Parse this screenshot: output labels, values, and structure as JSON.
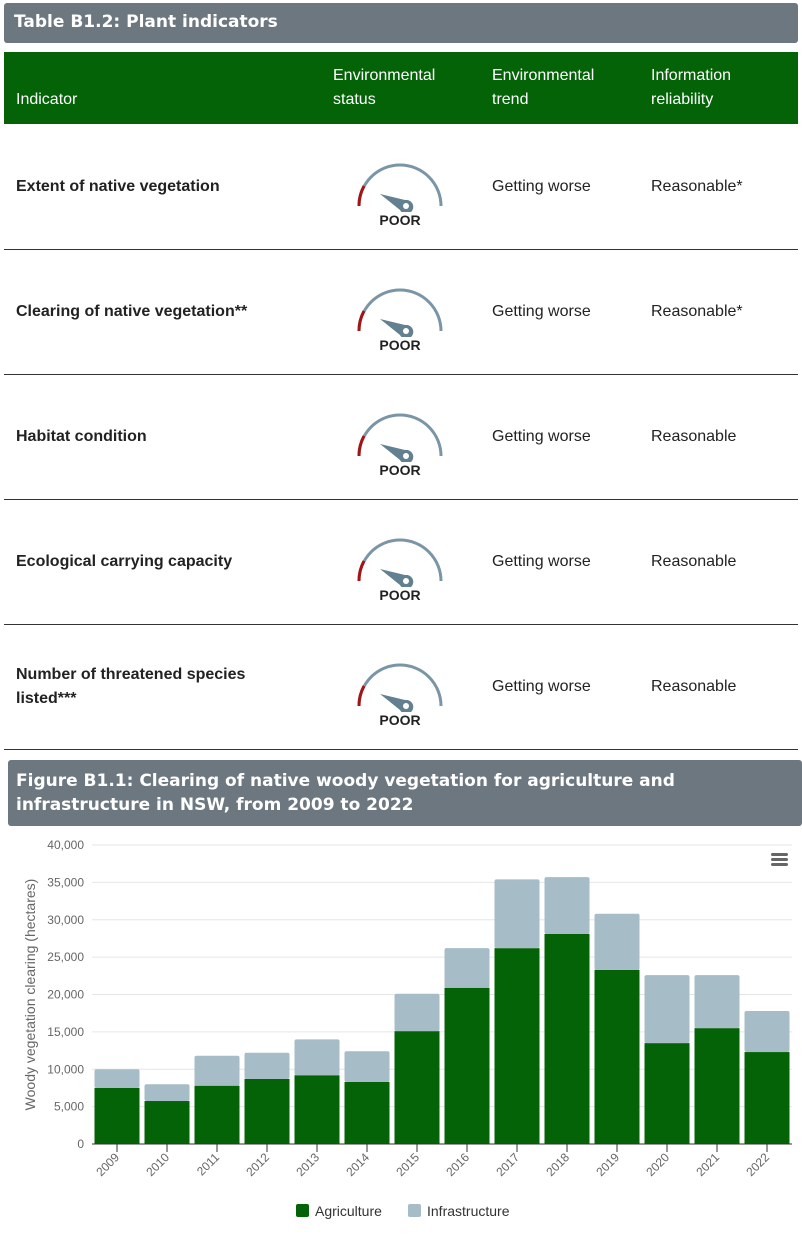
{
  "table": {
    "title": "Table B1.2: Plant indicators",
    "headers": {
      "indicator": "Indicator",
      "status": [
        "Environmental",
        "status"
      ],
      "trend": [
        "Environmental",
        "trend"
      ],
      "reliability": [
        "Information",
        "reliability"
      ]
    },
    "rows": [
      {
        "indicator": "Extent of native vegetation",
        "status": "POOR",
        "trend": "Getting worse",
        "reliability": "Reasonable*"
      },
      {
        "indicator": "Clearing of native vegetation**",
        "status": "POOR",
        "trend": "Getting worse",
        "reliability": "Reasonable*"
      },
      {
        "indicator": "Habitat condition",
        "status": "POOR",
        "trend": "Getting worse",
        "reliability": "Reasonable"
      },
      {
        "indicator": "Ecological carrying capacity",
        "status": "POOR",
        "trend": "Getting worse",
        "reliability": "Reasonable"
      },
      {
        "indicator": "Number of threatened species listed***",
        "status": "POOR",
        "trend": "Getting worse",
        "reliability": "Reasonable"
      }
    ],
    "colors": {
      "header": "#046307",
      "gauge": "#7a95a6",
      "poor": "#a31515"
    }
  },
  "figure": {
    "title": "Figure B1.1: Clearing of native woody vegetation for agriculture and infrastructure in NSW, from 2009 to 2022",
    "menu_icon": "hamburger-menu-icon"
  },
  "chart_data": {
    "type": "bar",
    "stacked": true,
    "ylabel": "Woody vegetation clearing (hectares)",
    "xlabel": "",
    "ylim": [
      0,
      40000
    ],
    "yticks": [
      "0",
      "5,000",
      "10,000",
      "15,000",
      "20,000",
      "25,000",
      "30,000",
      "35,000",
      "40,000"
    ],
    "grid": true,
    "legend": "bottom",
    "categories": [
      "2009",
      "2010",
      "2011",
      "2012",
      "2013",
      "2014",
      "2015",
      "2016",
      "2017",
      "2018",
      "2019",
      "2020",
      "2021",
      "2022"
    ],
    "series": [
      {
        "name": "Agriculture",
        "color": "#046307",
        "values": [
          7500,
          5750,
          7800,
          8700,
          9200,
          8300,
          15100,
          20900,
          26200,
          28100,
          23300,
          13500,
          15500,
          12300
        ]
      },
      {
        "name": "Infrastructure",
        "color": "#a6bcc7",
        "values": [
          2500,
          2250,
          4000,
          3500,
          4800,
          4100,
          5000,
          5300,
          9200,
          7600,
          7500,
          9100,
          7100,
          5500
        ]
      }
    ]
  }
}
